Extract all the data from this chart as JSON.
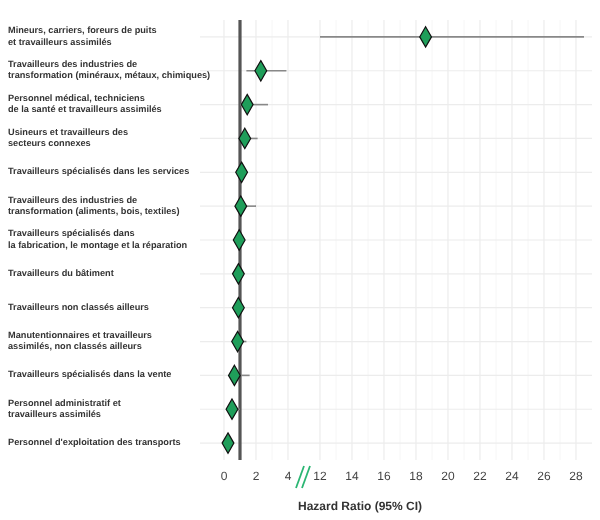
{
  "chart_data": [
    {
      "type": "scatter",
      "orientation": "horizontal",
      "xlabel": "Hazard Ratio (95% CI)",
      "categories": [
        "Mineurs, carriers, foreurs de puits\net travailleurs assimilés",
        "Travailleurs des industries de\ntransformation (minéraux, métaux, chimiques)",
        "Personnel médical, techniciens\nde la santé et travailleurs assimilés",
        "Usineurs et travailleurs des\nsecteurs connexes",
        "Travailleurs spécialisés dans les services",
        "Travailleurs des industries de\ntransformation (aliments, bois, textiles)",
        "Travailleurs spécialisés dans\nla fabrication, le montage et la réparation",
        "Travailleurs du bâtiment",
        "Travailleurs non classés ailleurs",
        "Manutentionnaires et travailleurs\nassimilés, non classés ailleurs",
        "Travailleurs spécialisés dans la vente",
        "Personnel administratif et\ntravailleurs assimilés",
        "Personnel d'exploitation des transports"
      ],
      "color": "#1f9e5a",
      "values": [
        null,
        2.3,
        1.45,
        1.3,
        1.1,
        1.05,
        0.95,
        0.9,
        0.9,
        0.85,
        0.65,
        0.5,
        0.25
      ],
      "errors": [
        null,
        [
          1.4,
          3.9
        ],
        [
          1.0,
          2.75
        ],
        [
          1.0,
          2.1
        ],
        [
          1.0,
          1.2
        ],
        [
          0.8,
          2.0
        ],
        [
          0.85,
          1.05
        ],
        [
          0.8,
          1.1
        ],
        [
          0.8,
          1.0
        ],
        [
          0.7,
          1.4
        ],
        [
          0.4,
          1.6
        ],
        [
          0.3,
          1.0
        ],
        [
          0.1,
          0.6
        ]
      ],
      "xlim": [
        -1.5,
        5
      ],
      "xticks": [
        0,
        2,
        4
      ],
      "ref_lines": [
        {
          "axis": "x",
          "value": 1,
          "color": "#555555"
        }
      ],
      "grid": true,
      "marker": "diamond"
    },
    {
      "type": "scatter",
      "orientation": "horizontal",
      "categories": [
        null,
        null,
        null,
        null,
        null,
        null,
        null,
        null,
        null,
        null,
        null,
        null,
        null
      ],
      "color": "#1f9e5a",
      "values": [
        18.6,
        null,
        null,
        null,
        null,
        null,
        null,
        null,
        null,
        null,
        null,
        null,
        null
      ],
      "errors": [
        [
          12,
          28.5
        ],
        null,
        null,
        null,
        null,
        null,
        null,
        null,
        null,
        null,
        null,
        null,
        null
      ],
      "xlim": [
        11,
        29
      ],
      "xticks": [
        12,
        14,
        16,
        18,
        20,
        22,
        24,
        26,
        28
      ],
      "tick_labels": "x",
      "grid": true,
      "marker": "diamond"
    }
  ]
}
